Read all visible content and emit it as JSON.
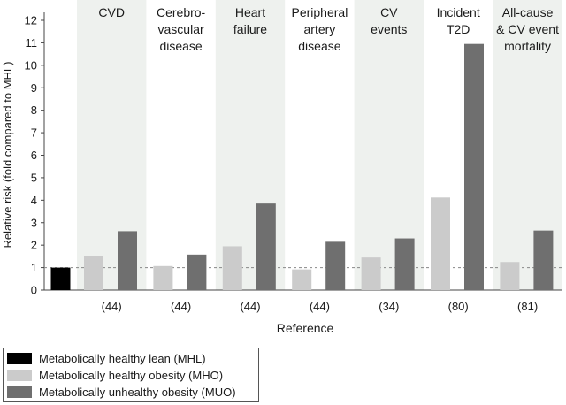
{
  "chart_data": {
    "type": "bar",
    "ylabel": "Relative risk (fold compared to MHL)",
    "xlabel": "Reference",
    "ylim": [
      0,
      12
    ],
    "yticks": [
      0,
      1,
      2,
      3,
      4,
      5,
      6,
      7,
      8,
      9,
      10,
      11,
      12
    ],
    "reference_line": 1,
    "baseline": {
      "name": "Metabolically healthy lean (MHL)",
      "value": 1.0,
      "color": "#000000"
    },
    "groups": [
      {
        "label": [
          "CVD"
        ],
        "reference": "(44)"
      },
      {
        "label": [
          "Cerebro-",
          "vascular",
          "disease"
        ],
        "reference": "(44)"
      },
      {
        "label": [
          "Heart",
          "failure"
        ],
        "reference": "(44)"
      },
      {
        "label": [
          "Peripheral",
          "artery",
          "disease"
        ],
        "reference": "(44)"
      },
      {
        "label": [
          "CV",
          "events"
        ],
        "reference": "(34)"
      },
      {
        "label": [
          "Incident",
          "T2D"
        ],
        "reference": "(80)"
      },
      {
        "label": [
          "All-cause",
          "& CV event",
          "mortality"
        ],
        "reference": "(81)"
      }
    ],
    "series": [
      {
        "name": "Metabolically healthy obesity (MHO)",
        "color": "#cbcbcb",
        "values": [
          1.5,
          1.07,
          1.95,
          0.92,
          1.45,
          4.12,
          1.25
        ]
      },
      {
        "name": "Metabolically unhealthy obesity (MUO)",
        "color": "#6f6f6f",
        "values": [
          2.62,
          1.58,
          3.85,
          2.15,
          2.3,
          10.95,
          2.65
        ]
      }
    ],
    "colors": {
      "band": "#eef1ee",
      "refline": "#888888"
    }
  },
  "legend": [
    {
      "label": "Metabolically healthy lean (MHL)",
      "color": "#000000"
    },
    {
      "label": "Metabolically healthy obesity (MHO)",
      "color": "#cbcbcb"
    },
    {
      "label": "Metabolically unhealthy obesity (MUO)",
      "color": "#6f6f6f"
    }
  ]
}
